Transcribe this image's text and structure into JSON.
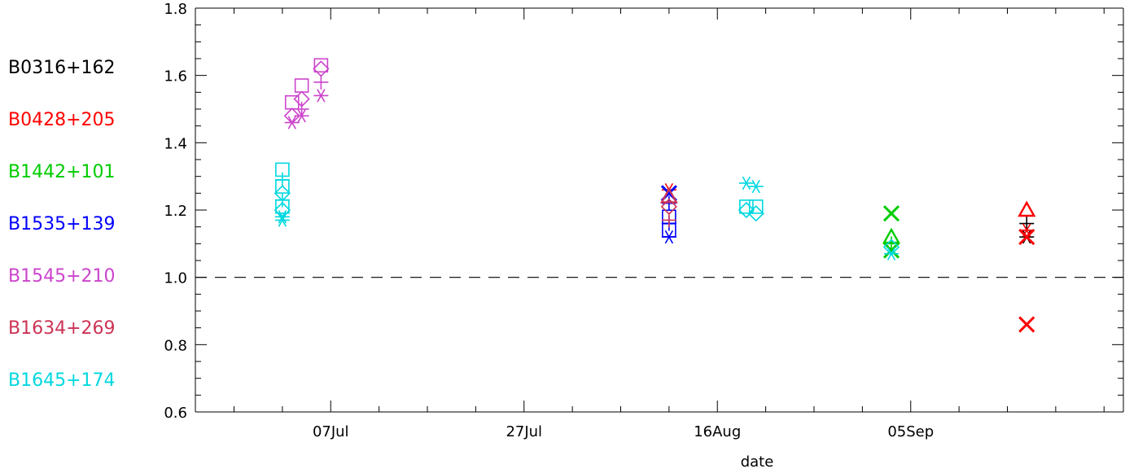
{
  "chart_data": {
    "type": "scatter",
    "title": "",
    "xlabel": "date",
    "ylabel": "",
    "x_type": "date",
    "xlim": [
      "2024-06-23",
      "2024-09-27"
    ],
    "ylim": [
      0.6,
      1.8
    ],
    "y_ticks": [
      0.6,
      0.8,
      1.0,
      1.2,
      1.4,
      1.6,
      1.8
    ],
    "y_tick_labels": [
      "0.6",
      "0.8",
      "1.0",
      "1.2",
      "1.4",
      "1.6",
      "1.8"
    ],
    "x_ticks": [
      "2024-07-07",
      "2024-07-27",
      "2024-08-16",
      "2024-09-05"
    ],
    "x_tick_labels": [
      "07Jul",
      "27Jul",
      "16Aug",
      "05Sep"
    ],
    "reference_line": {
      "y": 1.0,
      "style": "dashed"
    },
    "grid": false,
    "legend_position": "left",
    "series": [
      {
        "name": "B0316+162",
        "color": "#000000",
        "points": [
          {
            "x": "2024-09-17",
            "y": 1.16,
            "marker": "plus"
          },
          {
            "x": "2024-09-17",
            "y": 1.12,
            "marker": "asterisk"
          }
        ]
      },
      {
        "name": "B0428+205",
        "color": "#ff0000",
        "points": [
          {
            "x": "2024-09-17",
            "y": 1.2,
            "marker": "triangle"
          },
          {
            "x": "2024-09-17",
            "y": 1.14,
            "marker": "asterisk"
          },
          {
            "x": "2024-09-17",
            "y": 1.12,
            "marker": "x"
          },
          {
            "x": "2024-09-17",
            "y": 0.86,
            "marker": "x"
          },
          {
            "x": "2024-08-11",
            "y": 1.26,
            "marker": "asterisk"
          }
        ]
      },
      {
        "name": "B1442+101",
        "color": "#00cc00",
        "points": [
          {
            "x": "2024-09-03",
            "y": 1.19,
            "marker": "x"
          },
          {
            "x": "2024-09-03",
            "y": 1.12,
            "marker": "triangle"
          },
          {
            "x": "2024-09-03",
            "y": 1.1,
            "marker": "plus"
          },
          {
            "x": "2024-09-03",
            "y": 1.08,
            "marker": "x"
          }
        ]
      },
      {
        "name": "B1535+139",
        "color": "#0000ff",
        "points": [
          {
            "x": "2024-08-11",
            "y": 1.25,
            "marker": "x"
          },
          {
            "x": "2024-08-11",
            "y": 1.22,
            "marker": "plus"
          },
          {
            "x": "2024-08-11",
            "y": 1.18,
            "marker": "square"
          },
          {
            "x": "2024-08-11",
            "y": 1.16,
            "marker": "plus"
          },
          {
            "x": "2024-08-11",
            "y": 1.14,
            "marker": "square"
          },
          {
            "x": "2024-08-11",
            "y": 1.12,
            "marker": "asterisk"
          }
        ]
      },
      {
        "name": "B1545+210",
        "color": "#cc44cc",
        "points": [
          {
            "x": "2024-07-03",
            "y": 1.52,
            "marker": "square"
          },
          {
            "x": "2024-07-03",
            "y": 1.48,
            "marker": "diamond"
          },
          {
            "x": "2024-07-03",
            "y": 1.46,
            "marker": "asterisk"
          },
          {
            "x": "2024-07-04",
            "y": 1.5,
            "marker": "plus"
          },
          {
            "x": "2024-07-04",
            "y": 1.57,
            "marker": "square"
          },
          {
            "x": "2024-07-04",
            "y": 1.53,
            "marker": "diamond"
          },
          {
            "x": "2024-07-04",
            "y": 1.48,
            "marker": "asterisk"
          },
          {
            "x": "2024-07-06",
            "y": 1.63,
            "marker": "square"
          },
          {
            "x": "2024-07-06",
            "y": 1.62,
            "marker": "diamond"
          },
          {
            "x": "2024-07-06",
            "y": 1.58,
            "marker": "plus"
          },
          {
            "x": "2024-07-06",
            "y": 1.54,
            "marker": "asterisk"
          }
        ]
      },
      {
        "name": "B1634+269",
        "color": "#cc3355",
        "points": [
          {
            "x": "2024-08-11",
            "y": 1.21,
            "marker": "diamond"
          },
          {
            "x": "2024-08-11",
            "y": 1.17,
            "marker": "plus"
          },
          {
            "x": "2024-08-11",
            "y": 1.24,
            "marker": "triangle"
          }
        ]
      },
      {
        "name": "B1645+174",
        "color": "#00d8e0",
        "points": [
          {
            "x": "2024-07-02",
            "y": 1.32,
            "marker": "square"
          },
          {
            "x": "2024-07-02",
            "y": 1.29,
            "marker": "plus"
          },
          {
            "x": "2024-07-02",
            "y": 1.27,
            "marker": "square"
          },
          {
            "x": "2024-07-02",
            "y": 1.25,
            "marker": "diamond"
          },
          {
            "x": "2024-07-02",
            "y": 1.23,
            "marker": "plus"
          },
          {
            "x": "2024-07-02",
            "y": 1.21,
            "marker": "square"
          },
          {
            "x": "2024-07-02",
            "y": 1.2,
            "marker": "diamond"
          },
          {
            "x": "2024-07-02",
            "y": 1.18,
            "marker": "asterisk"
          },
          {
            "x": "2024-07-02",
            "y": 1.17,
            "marker": "asterisk"
          },
          {
            "x": "2024-08-19",
            "y": 1.28,
            "marker": "asterisk"
          },
          {
            "x": "2024-08-20",
            "y": 1.27,
            "marker": "asterisk"
          },
          {
            "x": "2024-08-19",
            "y": 1.21,
            "marker": "square"
          },
          {
            "x": "2024-08-20",
            "y": 1.21,
            "marker": "square"
          },
          {
            "x": "2024-08-19",
            "y": 1.2,
            "marker": "diamond"
          },
          {
            "x": "2024-08-20",
            "y": 1.19,
            "marker": "diamond"
          },
          {
            "x": "2024-09-03",
            "y": 1.07,
            "marker": "asterisk"
          },
          {
            "x": "2024-09-03",
            "y": 1.09,
            "marker": "diamond"
          }
        ]
      }
    ]
  }
}
